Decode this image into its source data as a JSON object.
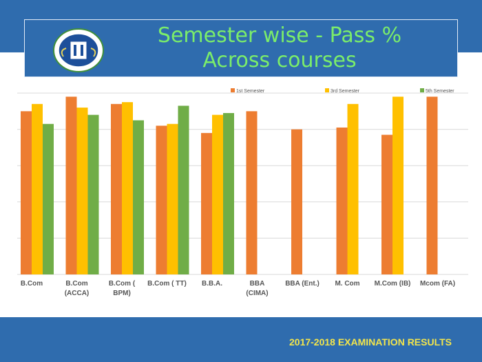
{
  "title": {
    "line1": "Semester wise - Pass %",
    "line2": "Across courses"
  },
  "footer": "2017-2018 EXAMINATION RESULTS",
  "icons": {
    "logo": "college-crest-logo"
  },
  "colors": {
    "band": "#2f6cae",
    "title": "#7bed6a",
    "footer": "#f4e64b",
    "grid": "#d9d9d9"
  },
  "chart_data": {
    "type": "bar",
    "title": "",
    "xlabel": "",
    "ylabel": "",
    "ylim": [
      0,
      100
    ],
    "grid": true,
    "legend_position": "top-right",
    "categories": [
      [
        "B.Com"
      ],
      [
        "B.Com",
        "(ACCA)"
      ],
      [
        "B.Com (",
        "BPM)"
      ],
      [
        "B.Com ( TT)"
      ],
      [
        "B.B.A."
      ],
      [
        "BBA",
        "(CIMA)"
      ],
      [
        "BBA (Ent.)"
      ],
      [
        "M. Com"
      ],
      [
        "M.Com (IB)"
      ],
      [
        "Mcom (FA)"
      ]
    ],
    "series": [
      {
        "name": "1st  Semester",
        "color": "#ed7d31",
        "values": [
          90,
          98,
          94,
          82,
          78,
          90,
          80,
          81,
          77,
          98
        ]
      },
      {
        "name": "3rd  Semester",
        "color": "#ffc000",
        "values": [
          94,
          92,
          95,
          83,
          88,
          null,
          null,
          94,
          98,
          null
        ]
      },
      {
        "name": "5th Semester",
        "color": "#70ad47",
        "values": [
          83,
          88,
          85,
          93,
          89,
          null,
          null,
          null,
          null,
          null
        ]
      }
    ]
  }
}
